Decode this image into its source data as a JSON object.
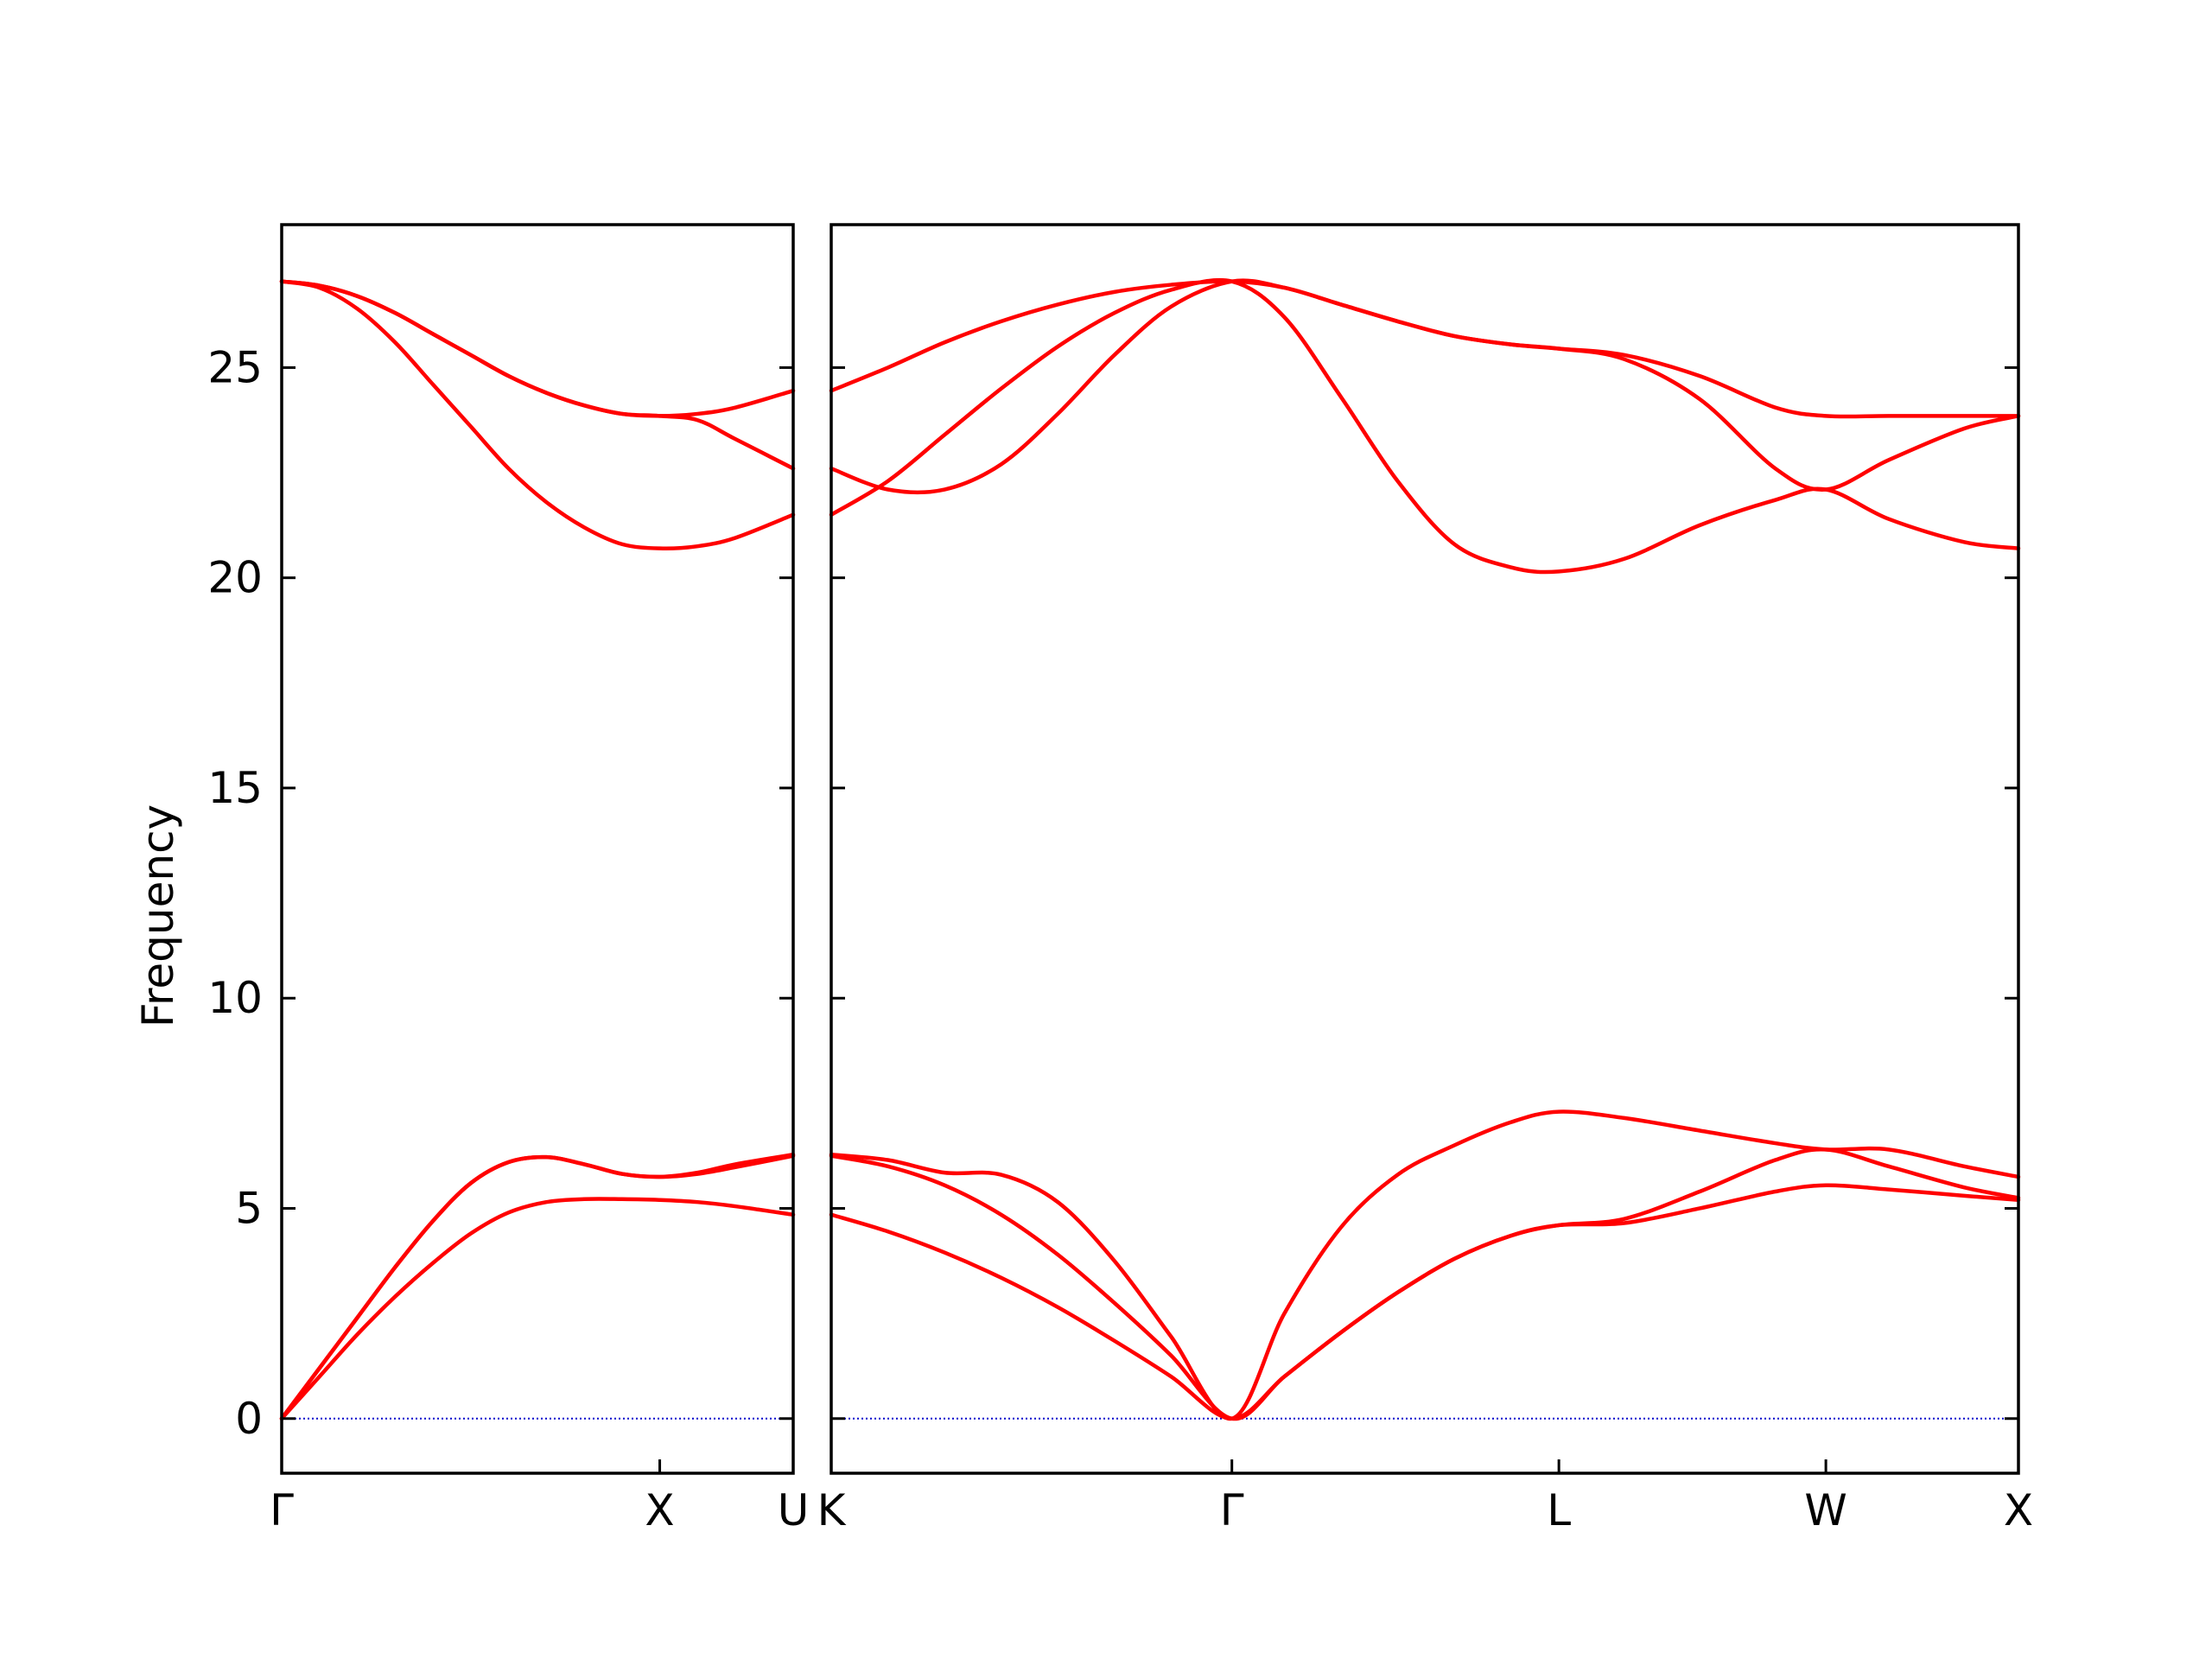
{
  "chart_data": {
    "type": "line",
    "ylabel": "Frequency",
    "ylim": [
      -1.3,
      28.4
    ],
    "yticks": [
      0,
      5,
      10,
      15,
      20,
      25
    ],
    "grid": false,
    "legend": "none",
    "colors": {
      "bands": "#ff0000",
      "zero_line": "#0000cc",
      "axes": "#000000"
    },
    "panels": [
      {
        "name": "gamma-x-u",
        "xlim": [
          0,
          1.353
        ],
        "labels": [
          {
            "pos": 0,
            "text": "Γ"
          },
          {
            "pos": 1.0,
            "text": "X"
          },
          {
            "pos": 1.353,
            "text": "U"
          }
        ],
        "series": [
          {
            "x": [
              0,
              0.1,
              0.2,
              0.3,
              0.4,
              0.5,
              0.6,
              0.7,
              0.8,
              0.9,
              1.0,
              1.1,
              1.2,
              1.353
            ],
            "values": [
              0,
              1.0,
              2.0,
              2.9,
              3.7,
              4.4,
              4.9,
              5.15,
              5.22,
              5.22,
              5.2,
              5.15,
              5.05,
              4.85
            ]
          },
          {
            "x": [
              0,
              0.1,
              0.2,
              0.3,
              0.4,
              0.5,
              0.6,
              0.7,
              0.8,
              0.9,
              1.0,
              1.1,
              1.2,
              1.353
            ],
            "values": [
              0,
              1.2,
              2.4,
              3.6,
              4.7,
              5.6,
              6.1,
              6.22,
              6.05,
              5.82,
              5.75,
              5.85,
              6.05,
              6.28
            ]
          },
          {
            "x": [
              0,
              0.1,
              0.2,
              0.3,
              0.4,
              0.5,
              0.6,
              0.7,
              0.8,
              0.9,
              1.0,
              1.1,
              1.2,
              1.353
            ],
            "values": [
              0,
              1.2,
              2.4,
              3.6,
              4.7,
              5.6,
              6.1,
              6.22,
              6.05,
              5.82,
              5.75,
              5.82,
              5.98,
              6.25
            ]
          },
          {
            "x": [
              0,
              0.1,
              0.2,
              0.3,
              0.4,
              0.5,
              0.6,
              0.7,
              0.8,
              0.9,
              1.0,
              1.1,
              1.2,
              1.353
            ],
            "values": [
              27.05,
              26.9,
              26.4,
              25.6,
              24.6,
              23.6,
              22.6,
              21.8,
              21.2,
              20.8,
              20.7,
              20.75,
              20.95,
              21.5
            ]
          },
          {
            "x": [
              0,
              0.1,
              0.2,
              0.3,
              0.4,
              0.5,
              0.6,
              0.7,
              0.8,
              0.9,
              1.0,
              1.1,
              1.2,
              1.353
            ],
            "values": [
              27.05,
              26.95,
              26.7,
              26.3,
              25.8,
              25.3,
              24.8,
              24.4,
              24.1,
              23.9,
              23.85,
              23.9,
              24.05,
              24.45
            ]
          },
          {
            "x": [
              0,
              0.1,
              0.2,
              0.3,
              0.4,
              0.5,
              0.6,
              0.7,
              0.8,
              0.9,
              1.0,
              1.1,
              1.2,
              1.353
            ],
            "values": [
              27.05,
              26.95,
              26.7,
              26.3,
              25.8,
              25.3,
              24.8,
              24.4,
              24.1,
              23.9,
              23.85,
              23.75,
              23.3,
              22.6
            ]
          }
        ]
      },
      {
        "name": "k-gamma-l-w-x",
        "xlim": [
          0,
          3.144
        ],
        "labels": [
          {
            "pos": 0,
            "text": "K"
          },
          {
            "pos": 1.061,
            "text": "Γ"
          },
          {
            "pos": 1.927,
            "text": "L"
          },
          {
            "pos": 2.634,
            "text": "W"
          },
          {
            "pos": 3.144,
            "text": "X"
          }
        ],
        "series": [
          {
            "x": [
              0,
              0.15,
              0.3,
              0.45,
              0.6,
              0.75,
              0.9,
              1.061,
              1.2,
              1.35,
              1.5,
              1.65,
              1.8,
              1.927,
              2.1,
              2.3,
              2.5,
              2.634,
              2.8,
              3.0,
              3.144
            ],
            "values": [
              4.85,
              4.45,
              3.95,
              3.35,
              2.65,
              1.85,
              1.0,
              0,
              1.0,
              2.05,
              3.0,
              3.8,
              4.35,
              4.6,
              4.65,
              5.0,
              5.4,
              5.55,
              5.45,
              5.3,
              5.2
            ]
          },
          {
            "x": [
              0,
              0.15,
              0.3,
              0.45,
              0.6,
              0.75,
              0.9,
              1.061,
              1.2,
              1.35,
              1.5,
              1.65,
              1.8,
              1.927,
              2.1,
              2.3,
              2.5,
              2.634,
              2.8,
              3.0,
              3.144
            ],
            "values": [
              6.25,
              6.0,
              5.55,
              4.85,
              3.9,
              2.75,
              1.5,
              0,
              1.0,
              2.05,
              3.0,
              3.8,
              4.35,
              4.6,
              4.75,
              5.4,
              6.15,
              6.4,
              6.0,
              5.5,
              5.25
            ]
          },
          {
            "x": [
              0,
              0.15,
              0.3,
              0.45,
              0.6,
              0.75,
              0.9,
              1.061,
              1.2,
              1.35,
              1.5,
              1.65,
              1.8,
              1.927,
              2.1,
              2.3,
              2.5,
              2.634,
              2.8,
              3.0,
              3.144
            ],
            "values": [
              6.28,
              6.15,
              5.85,
              5.8,
              5.15,
              3.75,
              1.95,
              0,
              2.5,
              4.55,
              5.8,
              6.5,
              7.05,
              7.3,
              7.15,
              6.85,
              6.55,
              6.4,
              6.4,
              6.0,
              5.75
            ]
          },
          {
            "x": [
              0,
              0.15,
              0.3,
              0.45,
              0.6,
              0.75,
              0.9,
              1.061,
              1.2,
              1.35,
              1.5,
              1.65,
              1.8,
              1.927,
              2.1,
              2.3,
              2.5,
              2.634,
              2.8,
              3.0,
              3.144
            ],
            "values": [
              21.5,
              22.3,
              23.4,
              24.5,
              25.5,
              26.3,
              26.85,
              27.05,
              26.2,
              24.3,
              22.3,
              20.8,
              20.25,
              20.15,
              20.45,
              21.25,
              21.85,
              22.1,
              21.4,
              20.85,
              20.7
            ]
          },
          {
            "x": [
              0,
              0.15,
              0.3,
              0.45,
              0.6,
              0.75,
              0.9,
              1.061,
              1.2,
              1.35,
              1.5,
              1.65,
              1.8,
              1.927,
              2.1,
              2.3,
              2.5,
              2.634,
              2.8,
              3.0,
              3.144
            ],
            "values": [
              22.6,
              22.1,
              22.1,
              22.7,
              23.9,
              25.3,
              26.45,
              27.05,
              26.9,
              26.5,
              26.1,
              25.75,
              25.55,
              25.45,
              25.2,
              24.25,
              22.6,
              22.1,
              22.8,
              23.55,
              23.85
            ]
          },
          {
            "x": [
              0,
              0.15,
              0.3,
              0.45,
              0.6,
              0.75,
              0.9,
              1.061,
              1.2,
              1.35,
              1.5,
              1.65,
              1.8,
              1.927,
              2.1,
              2.3,
              2.5,
              2.634,
              2.8,
              3.0,
              3.144
            ],
            "values": [
              24.45,
              25.0,
              25.6,
              26.1,
              26.5,
              26.8,
              26.97,
              27.05,
              26.9,
              26.5,
              26.1,
              25.75,
              25.55,
              25.45,
              25.3,
              24.8,
              24.05,
              23.85,
              23.85,
              23.85,
              23.85
            ]
          }
        ]
      }
    ]
  }
}
